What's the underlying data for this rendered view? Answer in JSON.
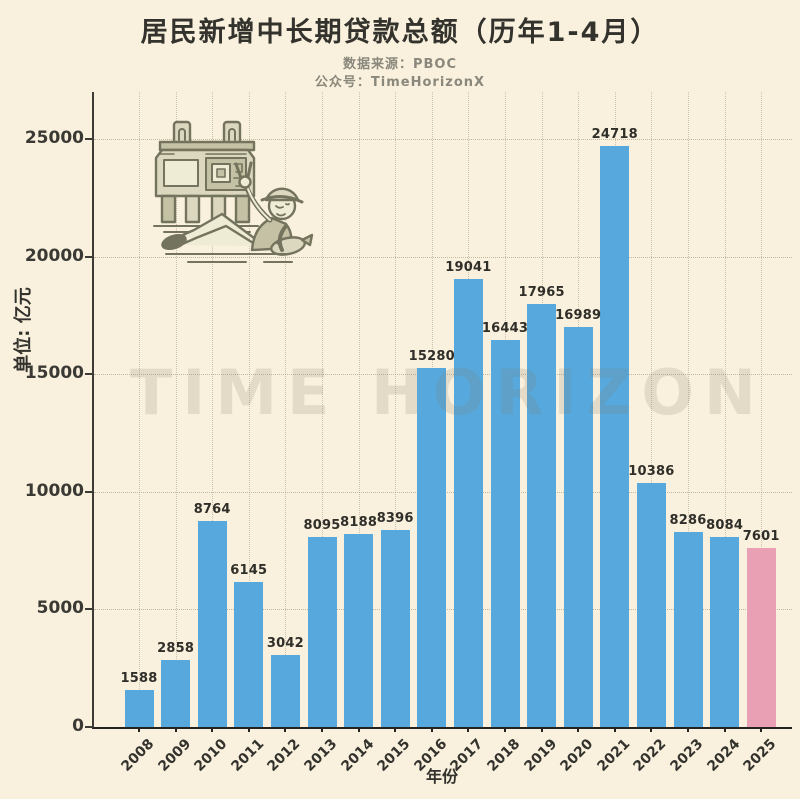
{
  "header": {
    "title": "居民新增中长期贷款总额（历年1-4月）",
    "source_line": "数据来源：PBOC",
    "account_line": "公众号：TimeHorizonX"
  },
  "watermark": "TIME HORIZON",
  "icons": {
    "mascot": "reclining-man-with-peace-sign-holding-fish-beside-bronze-ding-illustration"
  },
  "colors": {
    "background": "#f9f1dd",
    "bar": "#57a9dd",
    "highlight_bar": "#e9a0b4",
    "axis": "#3c3b35",
    "text_dark": "#33322d",
    "text_muted": "#8a887c",
    "grid": "#948a70"
  },
  "chart_data": {
    "type": "bar",
    "title": "居民新增中长期贷款总额（历年1-4月）",
    "subtitle": [
      "数据来源：PBOC",
      "公众号：TimeHorizonX"
    ],
    "xlabel": "年份",
    "ylabel": "单位: 亿元",
    "categories": [
      "2008",
      "2009",
      "2010",
      "2011",
      "2012",
      "2013",
      "2014",
      "2015",
      "2016",
      "2017",
      "2018",
      "2019",
      "2020",
      "2021",
      "2022",
      "2023",
      "2024",
      "2025"
    ],
    "values": [
      1588,
      2858,
      8764,
      6145,
      3042,
      8095,
      8188,
      8396,
      15280,
      19041,
      16443,
      17965,
      16989,
      24718,
      10386,
      8286,
      8084,
      7601
    ],
    "yticks": [
      0,
      5000,
      10000,
      15000,
      20000,
      25000
    ],
    "ylim": [
      0,
      27000
    ],
    "grid": "dotted",
    "legend": null,
    "value_labels": true,
    "bar_color": "#57a9dd",
    "highlight": {
      "category": "2025",
      "color": "#e9a0b4"
    }
  }
}
